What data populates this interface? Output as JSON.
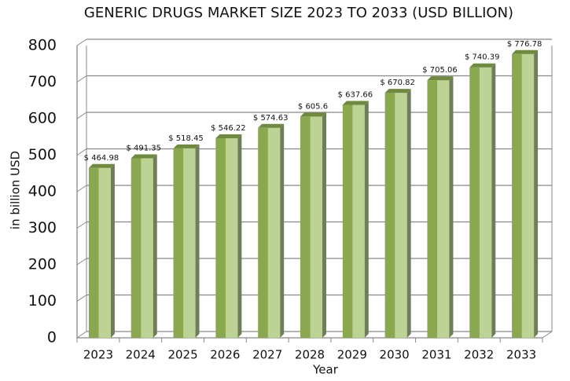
{
  "chart_data": {
    "type": "bar",
    "title": "GENERIC DRUGS MARKET SIZE 2023 TO 2033 (USD BILLION)",
    "xlabel": "Year",
    "ylabel": "in billion USD",
    "categories": [
      "2023",
      "2024",
      "2025",
      "2026",
      "2027",
      "2028",
      "2029",
      "2030",
      "2031",
      "2032",
      "2033"
    ],
    "values": [
      464.98,
      491.35,
      518.45,
      546.22,
      574.63,
      605.6,
      637.66,
      670.82,
      705.06,
      740.39,
      776.78
    ],
    "value_labels": [
      "$ 464.98",
      "$ 491.35",
      "$ 518.45",
      "$ 546.22",
      "$ 574.63",
      "$ 605.6",
      "$ 637.66",
      "$ 670.82",
      "$ 705.06",
      "$ 740.39",
      "$ 776.78"
    ],
    "color": "#8aa84f",
    "ylim": [
      0,
      800
    ],
    "yticks": [
      0,
      100,
      200,
      300,
      400,
      500,
      600,
      700,
      800
    ],
    "grid": true
  }
}
